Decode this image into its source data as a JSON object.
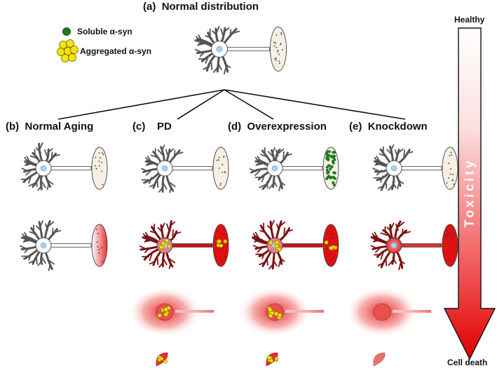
{
  "figure": {
    "panels": [
      {
        "letter": "(a)",
        "title": "Normal distribution"
      },
      {
        "letter": "(b)",
        "title": "Normal Aging"
      },
      {
        "letter": "(c)",
        "title": "PD"
      },
      {
        "letter": "(d)",
        "title": "Overexpression"
      },
      {
        "letter": "(e)",
        "title": "Knockdown"
      }
    ],
    "legend": {
      "soluble": "Soluble α-syn",
      "aggregated": "Aggregated α-syn"
    },
    "scale": {
      "top": "Healthy",
      "bottom": "Cell death",
      "arrow_label": "Toxicity"
    },
    "colors": {
      "soluble": "#1f7a1f",
      "aggregated": "#f2e600",
      "aggregate_core": "#8a7a10",
      "toxic": "#e01010",
      "membrane": "#f7efe3",
      "nucleus": "#a9d3ee"
    }
  }
}
